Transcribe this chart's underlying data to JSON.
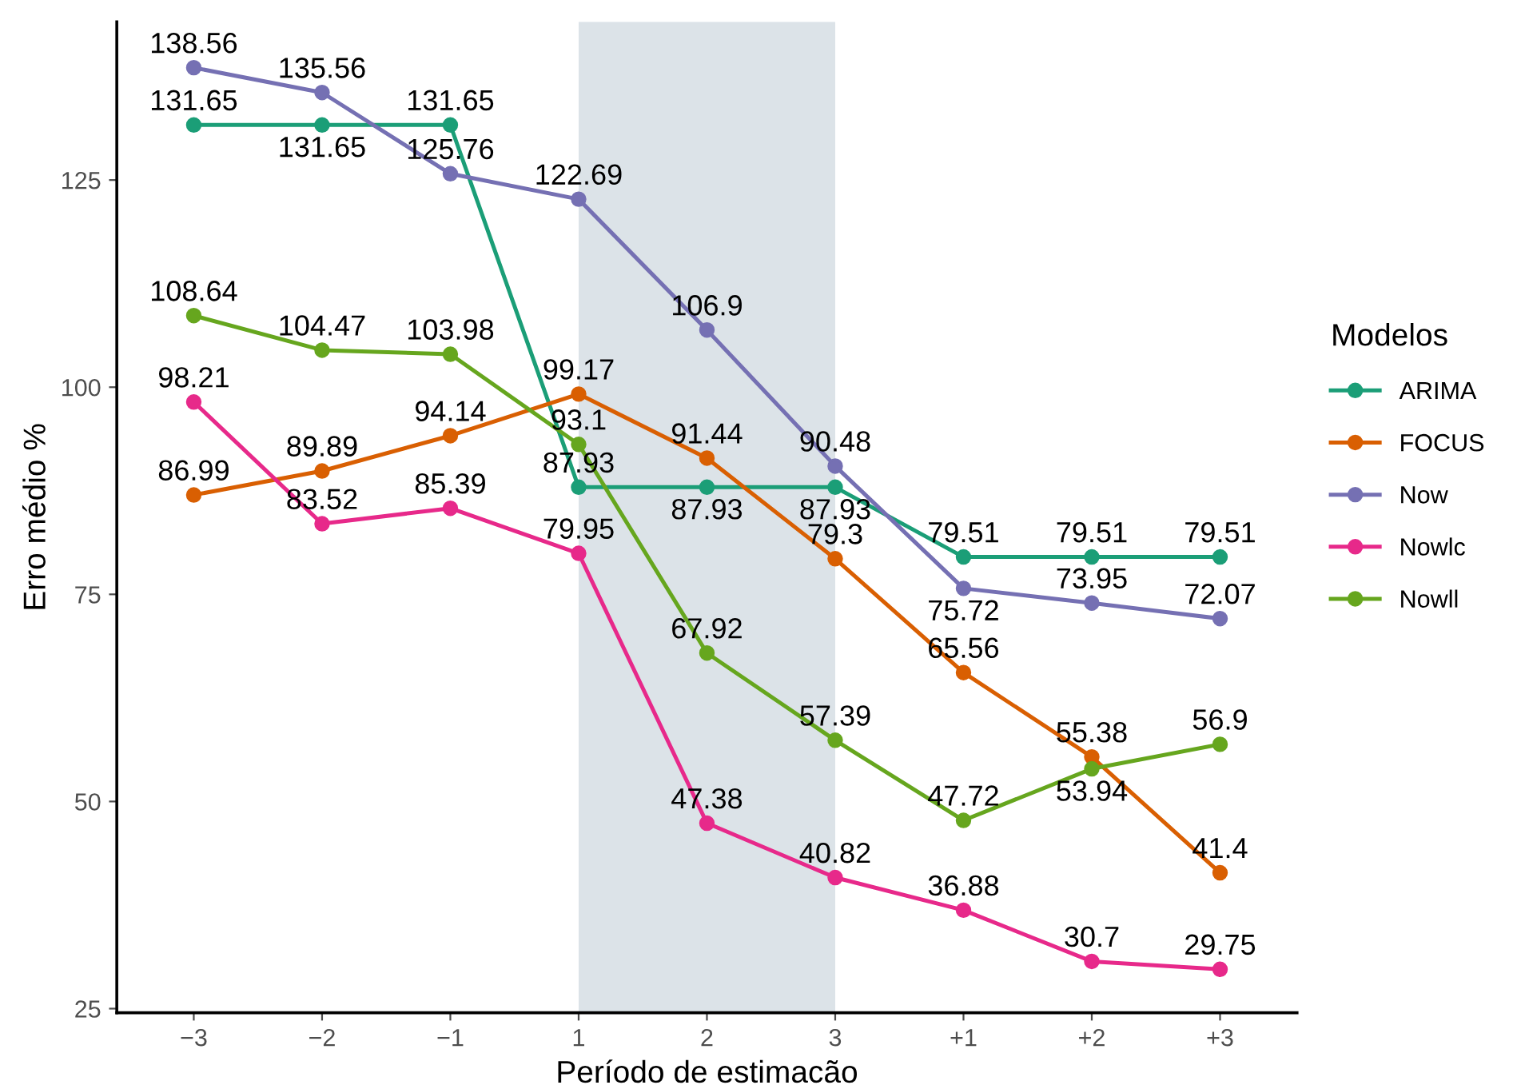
{
  "chart_data": {
    "type": "line",
    "xlabel": "Período de estimacão",
    "ylabel": "Erro médio %",
    "legend_title": "Modelos",
    "categories": [
      "−3",
      "−2",
      "−1",
      "1",
      "2",
      "3",
      "+1",
      "+2",
      "+3"
    ],
    "series": [
      {
        "name": "ARIMA",
        "color": "#1b9e77",
        "values": [
          131.65,
          131.65,
          131.65,
          87.93,
          87.93,
          87.93,
          79.51,
          79.51,
          79.51
        ]
      },
      {
        "name": "FOCUS",
        "color": "#d95f02",
        "values": [
          86.99,
          89.89,
          94.14,
          99.17,
          91.44,
          79.3,
          65.56,
          55.38,
          41.4
        ]
      },
      {
        "name": "Now",
        "color": "#7570b3",
        "values": [
          138.56,
          135.56,
          125.76,
          122.69,
          106.9,
          90.48,
          75.72,
          73.95,
          72.07
        ]
      },
      {
        "name": "Nowlc",
        "color": "#e7298a",
        "values": [
          98.21,
          83.52,
          85.39,
          79.95,
          47.38,
          40.82,
          36.88,
          30.7,
          29.75
        ]
      },
      {
        "name": "Nowll",
        "color": "#66a61e",
        "values": [
          108.64,
          104.47,
          103.98,
          93.1,
          67.92,
          57.39,
          47.72,
          53.94,
          56.9
        ]
      }
    ],
    "bands": [
      {
        "axis": "x",
        "from": "1",
        "to": "3",
        "color": "#dce3e8"
      }
    ],
    "ylim": [
      24.5,
      144.1
    ],
    "yticks": [
      25,
      50,
      75,
      100,
      125
    ],
    "data_labels": true,
    "marker": "circle",
    "line_style": "solid",
    "grid": false,
    "legend": "right"
  }
}
